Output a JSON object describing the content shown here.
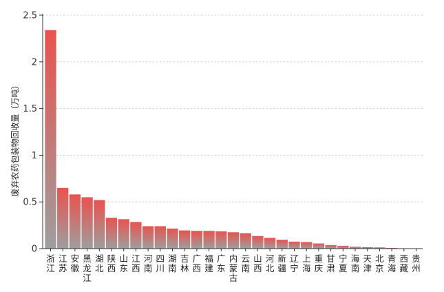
{
  "chart_data": {
    "type": "bar",
    "title": "",
    "xlabel": "",
    "ylabel": "废弃农药包装物回收量（万吨）",
    "ylim": [
      0,
      2.5
    ],
    "yticks": [
      0,
      0.5,
      1,
      1.5,
      2,
      2.5
    ],
    "ytick_labels": [
      "0",
      "0.5",
      "1",
      "1.5",
      "2",
      "2.5"
    ],
    "grid": "horizontal dotted",
    "legend": "none",
    "colors": {
      "bar_top": "#e8534f",
      "bar_bottom": "#9e9e9e",
      "grid": "#cccccc",
      "axis": "#333333"
    },
    "categories": [
      "浙江",
      "江苏",
      "安徽",
      "黑龙江",
      "湖北",
      "陕西",
      "山东",
      "江西",
      "河南",
      "四川",
      "湖南",
      "吉林",
      "广西",
      "福建",
      "广东",
      "内蒙古",
      "云南",
      "山西",
      "河北",
      "新疆",
      "辽宁",
      "上海",
      "重庆",
      "甘肃",
      "宁夏",
      "海南",
      "天津",
      "北京",
      "青海",
      "西藏",
      "贵州"
    ],
    "values": [
      2.34,
      0.65,
      0.58,
      0.55,
      0.52,
      0.33,
      0.315,
      0.285,
      0.24,
      0.24,
      0.215,
      0.195,
      0.19,
      0.19,
      0.185,
      0.175,
      0.165,
      0.135,
      0.115,
      0.095,
      0.075,
      0.07,
      0.055,
      0.038,
      0.03,
      0.02,
      0.015,
      0.013,
      0.008,
      0.003,
      0.002
    ]
  }
}
